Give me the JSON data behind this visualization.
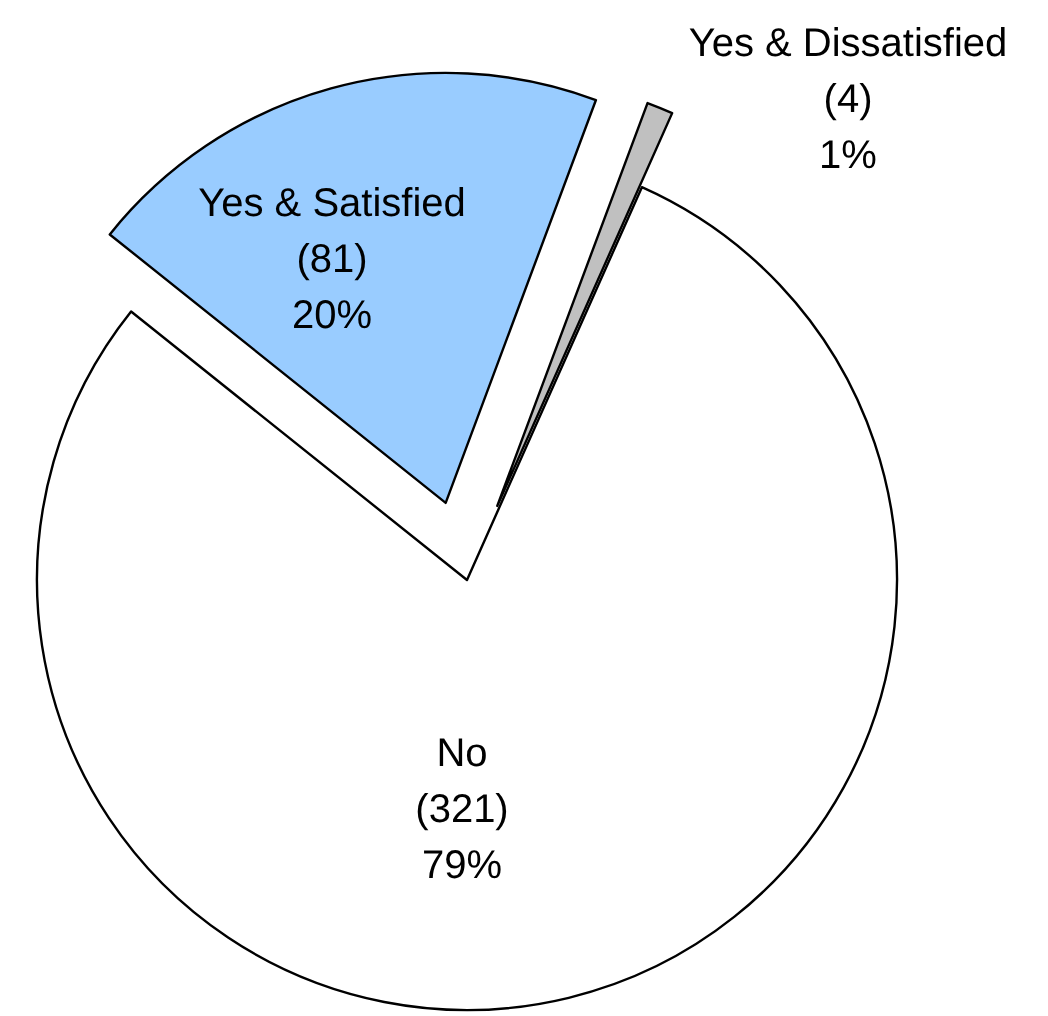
{
  "chart_data": {
    "type": "pie",
    "categories": [
      "No",
      "Yes & Satisfied",
      "Yes & Dissatisfied"
    ],
    "values": [
      321,
      81,
      4
    ],
    "colors": [
      "#ffffff",
      "#99ccff",
      "#c0c0c0"
    ],
    "value_labels": [
      "(321)\n79%",
      "(81)\n20%",
      "(4)\n1%"
    ]
  }
}
